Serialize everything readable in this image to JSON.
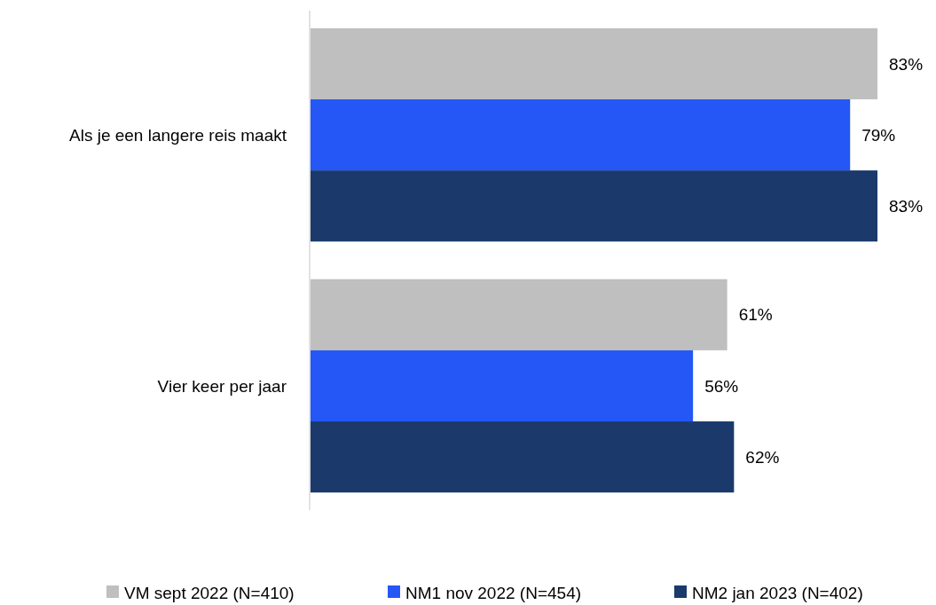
{
  "chart_data": {
    "type": "bar",
    "orientation": "horizontal",
    "categories": [
      "Als je een langere reis maakt",
      "Vier keer per jaar"
    ],
    "series": [
      {
        "name": "VM sept 2022 (N=410)",
        "color": "#bfbfbf",
        "values": [
          83,
          61
        ],
        "value_labels": [
          "83%",
          "61%"
        ]
      },
      {
        "name": "NM1 nov 2022 (N=454)",
        "color": "#2457f5",
        "values": [
          79,
          56
        ],
        "value_labels": [
          "79%",
          "56%"
        ]
      },
      {
        "name": "NM2 jan 2023 (N=402)",
        "color": "#1b3a6b",
        "values": [
          83,
          62
        ],
        "value_labels": [
          "83%",
          "62%"
        ]
      }
    ],
    "legend": "bottom"
  }
}
